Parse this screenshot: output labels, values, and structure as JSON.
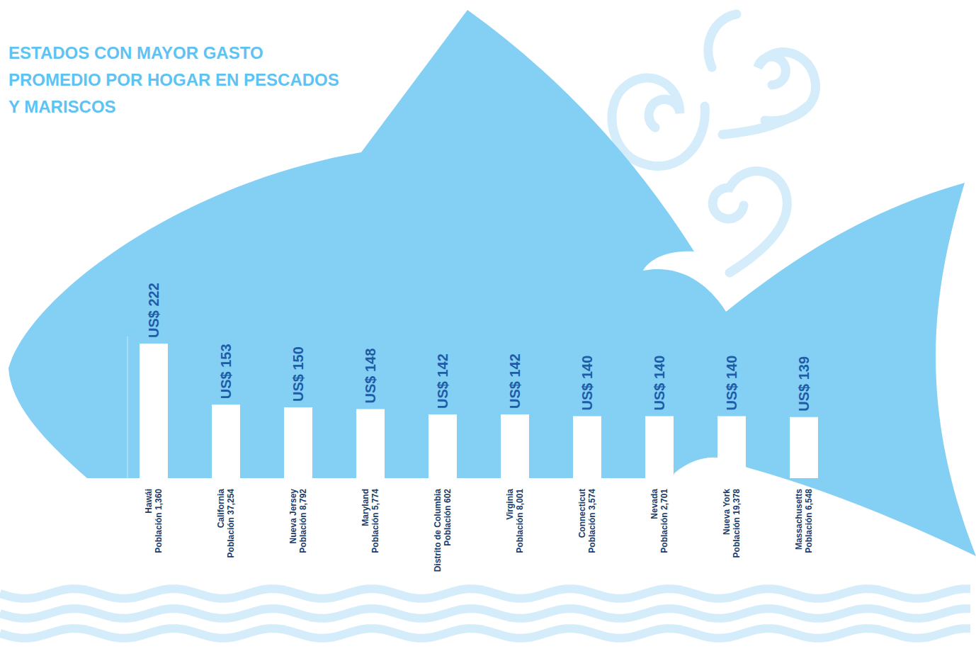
{
  "chart_data": {
    "type": "bar",
    "title": "ESTADOS CON MAYOR GASTO PROMEDIO POR HOGAR EN PESCADOS Y MARISCOS",
    "categories": [
      "Hawái",
      "California",
      "Nueva Jersey",
      "Maryland",
      "Distrito de Columbia",
      "Virginia",
      "Connecticut",
      "Nevada",
      "Nueva York",
      "Massachusetts"
    ],
    "population_labels": [
      "Población 1,360",
      "Población 37,254",
      "Población 8,792",
      "Población 5,774",
      "Población 602",
      "Población 8,001",
      "Población 3,574",
      "Población 2,701",
      "Población 19,378",
      "Población 6,548"
    ],
    "values": [
      222,
      153,
      150,
      148,
      142,
      142,
      140,
      140,
      140,
      139
    ],
    "value_labels": [
      "US$ 222",
      "US$ 153",
      "US$ 150",
      "US$ 148",
      "US$ 142",
      "US$ 142",
      "US$ 140",
      "US$ 140",
      "US$ 140",
      "US$ 139"
    ],
    "color": "#ffffff",
    "ylim": [
      70,
      230
    ],
    "data_labels": true,
    "tick_labels": "x",
    "grid": false
  }
}
